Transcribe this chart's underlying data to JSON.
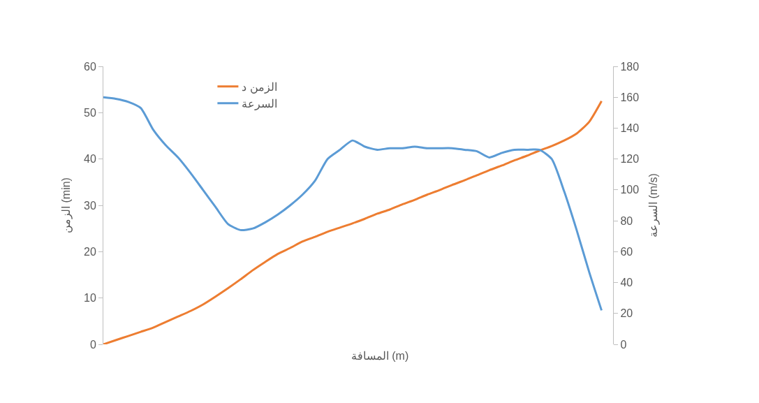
{
  "chart_data": {
    "type": "line",
    "xlabel": "المسافة (m)",
    "ylabel": "الزمن (min)",
    "y2label": "السرعة (m/s)",
    "categories": [
      null,
      null,
      null,
      null,
      null,
      null,
      null,
      null,
      null,
      null,
      null,
      null,
      null,
      null,
      null,
      null,
      null,
      null,
      null,
      null,
      null,
      null,
      null,
      null,
      null,
      null,
      null,
      null,
      null,
      null,
      null,
      null,
      null,
      null,
      null,
      null,
      null,
      null,
      null,
      null,
      null
    ],
    "series": [
      {
        "name": "الزمن د",
        "color": "#ed7d31",
        "values": [
          0,
          0.9,
          1.8,
          2.7,
          3.6,
          4.8,
          6.0,
          7.2,
          8.6,
          10.3,
          12.1,
          14.0,
          16.0,
          17.8,
          19.5,
          20.8,
          22.2,
          23.2,
          24.3,
          25.2,
          26.1,
          27.1,
          28.2,
          29.1,
          30.2,
          31.2,
          32.3,
          33.3,
          34.4,
          35.4,
          36.5,
          37.6,
          38.6,
          39.7,
          40.7,
          41.8,
          42.8,
          44.0,
          45.5,
          48.0,
          52.5
        ]
      },
      {
        "name": "السرعة",
        "color": "#5b9bd5",
        "axis": "y2",
        "values": [
          160,
          159,
          157,
          153,
          139,
          129,
          121,
          111,
          100,
          89,
          78,
          74,
          75,
          79,
          84,
          90,
          97,
          106,
          120,
          126,
          132,
          128,
          126,
          127,
          127,
          128,
          127,
          127,
          127,
          126,
          125,
          121,
          124,
          126,
          126,
          126,
          120,
          99,
          74,
          47,
          22
        ]
      }
    ],
    "ylim": [
      0,
      60
    ],
    "yticks": [
      0,
      10,
      20,
      30,
      40,
      50,
      60
    ],
    "y2lim": [
      0,
      180
    ],
    "y2ticks": [
      0,
      20,
      40,
      60,
      80,
      100,
      120,
      140,
      160,
      180
    ],
    "grid": false,
    "legend": "top left",
    "tick_labels": "y"
  }
}
